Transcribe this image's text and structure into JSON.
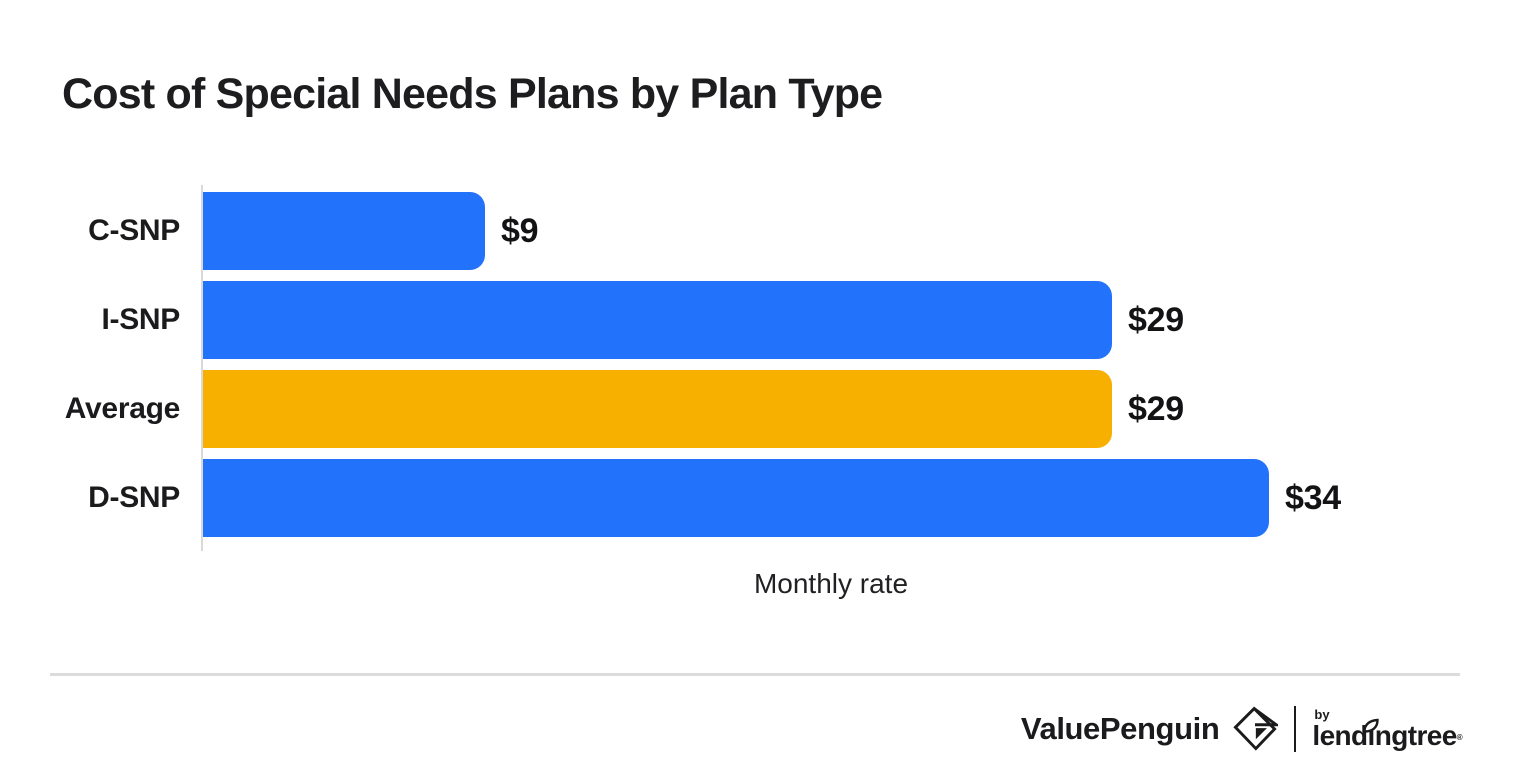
{
  "title": "Cost of Special Needs Plans by Plan Type",
  "chart_data": {
    "type": "bar",
    "orientation": "horizontal",
    "categories": [
      "C-SNP",
      "I-SNP",
      "Average",
      "D-SNP"
    ],
    "values": [
      9,
      29,
      29,
      34
    ],
    "value_labels": [
      "$9",
      "$29",
      "$29",
      "$34"
    ],
    "bar_colors": [
      "#2272FB",
      "#2272FB",
      "#F8B000",
      "#2272FB"
    ],
    "xlabel": "Monthly rate",
    "xlim": [
      0,
      34
    ],
    "grid": false,
    "legend": false
  },
  "colors": {
    "bar_blue": "#2272FB",
    "bar_orange": "#F8B000",
    "text": "#1b1b1d",
    "axis_line": "#d9d9d9",
    "divider": "#dcdcdc",
    "background": "#ffffff"
  },
  "footer": {
    "brand": "ValuePenguin",
    "by_label": "by",
    "sub_brand": "lendingtree",
    "trademark": "®"
  }
}
